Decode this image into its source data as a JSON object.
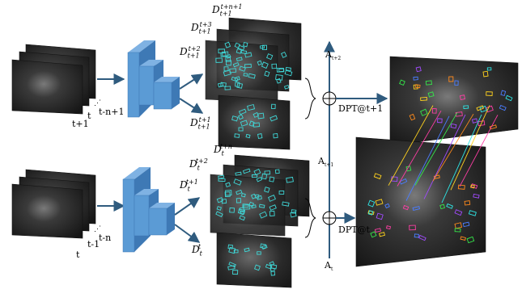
{
  "colors": {
    "cnn_front": "#5b9bd5",
    "cnn_side": "#3e79b5",
    "frame_dark": "#2b2b2b",
    "box_cyan": "#3fd7d7",
    "arrow": "#2f5b7e",
    "match_palette": [
      "#ffd21e",
      "#ff3ea5",
      "#4a7dff",
      "#35e84a",
      "#a24bff",
      "#ff8a1c",
      "#2ee6e6"
    ]
  },
  "top_branch": {
    "input_labels": [
      "t+1",
      "t",
      "t-n+1"
    ],
    "detections": [
      {
        "base": "D",
        "sub": "t+1",
        "sup": "t+n+1"
      },
      {
        "base": "D",
        "sub": "t+1",
        "sup": "t+3"
      },
      {
        "base": "D",
        "sub": "t+1",
        "sup": "t+2"
      },
      {
        "base": "D",
        "sub": "t+1",
        "sup": "t+1"
      }
    ],
    "output_label": "DPT@t+1",
    "attention_label": {
      "base": "A",
      "sub": "t+2"
    }
  },
  "bottom_branch": {
    "input_labels": [
      "t",
      "t-1",
      "t-n"
    ],
    "detections": [
      {
        "base": "D",
        "sub": "t",
        "sup": "t+n"
      },
      {
        "base": "D",
        "sub": "t",
        "sup": "t+2"
      },
      {
        "base": "D",
        "sub": "t",
        "sup": "t+1"
      },
      {
        "base": "D",
        "sub": "t",
        "sup": "t"
      }
    ],
    "output_label": "DPT@t",
    "attention_label": {
      "base": "A",
      "sub": "t"
    }
  },
  "middle_attention_label": {
    "base": "A",
    "sub": "t+1"
  },
  "icons": {
    "sum": "circled-plus-icon",
    "ellipsis": "dots-icon",
    "brace": "brace-icon"
  }
}
